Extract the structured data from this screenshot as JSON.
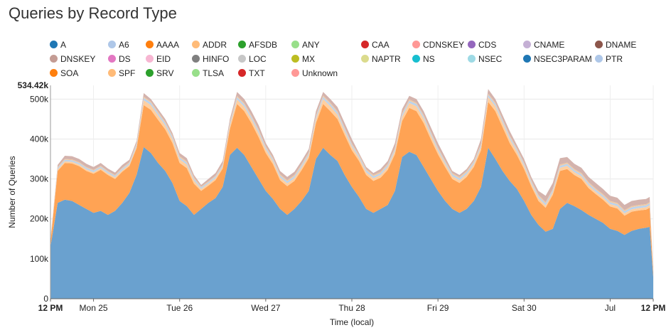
{
  "chart_data": {
    "type": "area",
    "stacked": true,
    "title": "Queries by Record Type",
    "xlabel": "Time (local)",
    "ylabel": "Number of Queries",
    "ylim": [
      0,
      534420
    ],
    "y_max_label": "534.42k",
    "y_ticks": [
      {
        "value": 0,
        "label": "0"
      },
      {
        "value": 100000,
        "label": "100k"
      },
      {
        "value": 200000,
        "label": "200k"
      },
      {
        "value": 300000,
        "label": "300k"
      },
      {
        "value": 400000,
        "label": "400k"
      },
      {
        "value": 500000,
        "label": "500k"
      }
    ],
    "x_ticks": [
      {
        "hour": 0,
        "label": "12 PM",
        "bold": true
      },
      {
        "hour": 12,
        "label": "Mon 25",
        "bold": false
      },
      {
        "hour": 36,
        "label": "Tue 26",
        "bold": false
      },
      {
        "hour": 60,
        "label": "Wed 27",
        "bold": false
      },
      {
        "hour": 84,
        "label": "Thu 28",
        "bold": false
      },
      {
        "hour": 108,
        "label": "Fri 29",
        "bold": false
      },
      {
        "hour": 132,
        "label": "Sat 30",
        "bold": false
      },
      {
        "hour": 156,
        "label": "Jul",
        "bold": false
      },
      {
        "hour": 168,
        "label": "12 PM",
        "bold": true
      }
    ],
    "grid": true,
    "legend_position": "top",
    "legend": [
      {
        "name": "A",
        "color": "#1f77b4"
      },
      {
        "name": "A6",
        "color": "#aec7e8"
      },
      {
        "name": "AAAA",
        "color": "#ff7f0e"
      },
      {
        "name": "ADDR",
        "color": "#ffbb78"
      },
      {
        "name": "AFSDB",
        "color": "#2ca02c"
      },
      {
        "name": "ANY",
        "color": "#98df8a"
      },
      {
        "name": "CAA",
        "color": "#d62728"
      },
      {
        "name": "CDNSKEY",
        "color": "#ff9896"
      },
      {
        "name": "CDS",
        "color": "#9467bd"
      },
      {
        "name": "CNAME",
        "color": "#c5b0d5"
      },
      {
        "name": "DNAME",
        "color": "#8c564b"
      },
      {
        "name": "DNSKEY",
        "color": "#c49c94"
      },
      {
        "name": "DS",
        "color": "#e377c2"
      },
      {
        "name": "EID",
        "color": "#f7b6d2"
      },
      {
        "name": "HINFO",
        "color": "#7f7f7f"
      },
      {
        "name": "LOC",
        "color": "#c7c7c7"
      },
      {
        "name": "MX",
        "color": "#bcbd22"
      },
      {
        "name": "NAPTR",
        "color": "#dbdb8d"
      },
      {
        "name": "NS",
        "color": "#17becf"
      },
      {
        "name": "NSEC",
        "color": "#9edae5"
      },
      {
        "name": "NSEC3PARAM",
        "color": "#1f77b4"
      },
      {
        "name": "PTR",
        "color": "#aec7e8"
      },
      {
        "name": "SOA",
        "color": "#ff7f0e"
      },
      {
        "name": "SPF",
        "color": "#ffbb78"
      },
      {
        "name": "SRV",
        "color": "#2ca02c"
      },
      {
        "name": "TLSA",
        "color": "#98df8a"
      },
      {
        "name": "TXT",
        "color": "#d62728"
      },
      {
        "name": "Unknown",
        "color": "#ff9896"
      }
    ],
    "series_draw": [
      {
        "name": "A",
        "color": "#6aa1cf"
      },
      {
        "name": "AAAA",
        "color": "#ffa354"
      },
      {
        "name": "ADDR",
        "color": "#ffcfa0"
      },
      {
        "name": "PTR",
        "color": "#bcd3ec"
      },
      {
        "name": "SOA",
        "color": "#f1c9a0"
      },
      {
        "name": "DNSKEY",
        "color": "#d4b3ad"
      }
    ],
    "x_hours": [
      0,
      2,
      4,
      6,
      8,
      10,
      12,
      14,
      16,
      18,
      20,
      22,
      24,
      26,
      28,
      30,
      32,
      34,
      36,
      38,
      40,
      42,
      44,
      46,
      48,
      50,
      52,
      54,
      56,
      58,
      60,
      62,
      64,
      66,
      68,
      70,
      72,
      74,
      76,
      78,
      80,
      82,
      84,
      86,
      88,
      90,
      92,
      94,
      96,
      98,
      100,
      102,
      104,
      106,
      108,
      110,
      112,
      114,
      116,
      118,
      120,
      122,
      124,
      126,
      128,
      130,
      132,
      134,
      136,
      138,
      140,
      142,
      144,
      146,
      148,
      150,
      152,
      154,
      156,
      158,
      160,
      162,
      164,
      166,
      167,
      168
    ],
    "totals": [
      150000,
      335000,
      358000,
      357000,
      350000,
      338000,
      330000,
      340000,
      326000,
      316000,
      335000,
      348000,
      395000,
      515000,
      500000,
      475000,
      450000,
      415000,
      365000,
      352000,
      310000,
      285000,
      300000,
      315000,
      345000,
      450000,
      518000,
      500000,
      470000,
      435000,
      390000,
      360000,
      320000,
      305000,
      318000,
      345000,
      375000,
      470000,
      518000,
      500000,
      480000,
      440000,
      400000,
      365000,
      330000,
      315000,
      325000,
      345000,
      390000,
      475000,
      508000,
      500000,
      470000,
      430000,
      390000,
      355000,
      320000,
      310000,
      325000,
      350000,
      400000,
      525000,
      500000,
      460000,
      420000,
      385000,
      350000,
      305000,
      270000,
      258000,
      290000,
      352000,
      355000,
      338000,
      328000,
      305000,
      290000,
      275000,
      258000,
      253000,
      235000,
      245000,
      248000,
      250000,
      255000,
      70000
    ],
    "values_A": [
      130000,
      240000,
      248000,
      245000,
      235000,
      225000,
      215000,
      220000,
      210000,
      220000,
      240000,
      265000,
      310000,
      380000,
      365000,
      340000,
      320000,
      290000,
      245000,
      232000,
      210000,
      225000,
      240000,
      252000,
      280000,
      360000,
      378000,
      360000,
      330000,
      300000,
      270000,
      250000,
      225000,
      210000,
      225000,
      245000,
      270000,
      350000,
      378000,
      360000,
      345000,
      310000,
      280000,
      255000,
      225000,
      215000,
      225000,
      235000,
      270000,
      355000,
      368000,
      360000,
      330000,
      300000,
      270000,
      245000,
      225000,
      215000,
      225000,
      245000,
      280000,
      378000,
      350000,
      320000,
      295000,
      275000,
      245000,
      210000,
      185000,
      168000,
      175000,
      225000,
      240000,
      232000,
      222000,
      210000,
      200000,
      190000,
      175000,
      170000,
      160000,
      170000,
      175000,
      178000,
      180000,
      55000
    ],
    "values_AAAA": [
      12000,
      80000,
      92000,
      94000,
      97000,
      95000,
      98000,
      103000,
      100000,
      80000,
      78000,
      67000,
      67000,
      105000,
      108000,
      108000,
      104000,
      100000,
      95000,
      95000,
      78000,
      45000,
      43000,
      45000,
      46000,
      65000,
      110000,
      110000,
      110000,
      105000,
      95000,
      87000,
      72000,
      72000,
      70000,
      77000,
      82000,
      90000,
      110000,
      110000,
      105000,
      100000,
      92000,
      90000,
      85000,
      80000,
      78000,
      88000,
      92000,
      90000,
      110000,
      110000,
      110000,
      100000,
      92000,
      85000,
      75000,
      75000,
      80000,
      85000,
      92000,
      115000,
      120000,
      110000,
      95000,
      85000,
      80000,
      72000,
      60000,
      60000,
      85000,
      95000,
      85000,
      78000,
      78000,
      67000,
      62000,
      58000,
      56000,
      56000,
      48000,
      48000,
      46000,
      45000,
      48000,
      10000
    ],
    "values_ADDR": [
      3000,
      4000,
      4000,
      4000,
      4000,
      4000,
      4000,
      4000,
      4000,
      4000,
      4000,
      4000,
      5000,
      12000,
      12000,
      11000,
      10000,
      10000,
      9000,
      9000,
      8000,
      5000,
      5000,
      5000,
      5000,
      9000,
      11000,
      11000,
      10000,
      10000,
      9000,
      8000,
      7000,
      7000,
      7000,
      7000,
      7000,
      10000,
      12000,
      12000,
      11000,
      10000,
      9000,
      8000,
      7000,
      7000,
      7000,
      7000,
      8000,
      11000,
      12000,
      12000,
      11000,
      10000,
      9000,
      8000,
      7000,
      7000,
      7000,
      7000,
      8000,
      12000,
      12000,
      11000,
      10000,
      9000,
      8000,
      7000,
      7000,
      6000,
      7000,
      8000,
      8000,
      7000,
      7000,
      7000,
      6000,
      6000,
      6000,
      6000,
      6000,
      6000,
      6000,
      6000,
      6000,
      2000
    ],
    "values_PTR": [
      2000,
      4000,
      4000,
      4000,
      4000,
      4000,
      4000,
      4000,
      4000,
      4000,
      4000,
      4000,
      5000,
      6000,
      6000,
      6000,
      6000,
      6000,
      5000,
      5000,
      5000,
      4000,
      4000,
      4000,
      4000,
      5000,
      6000,
      6000,
      6000,
      6000,
      5000,
      5000,
      5000,
      5000,
      5000,
      5000,
      5000,
      6000,
      6000,
      6000,
      6000,
      6000,
      5000,
      5000,
      5000,
      5000,
      5000,
      5000,
      5000,
      6000,
      6000,
      6000,
      6000,
      6000,
      5000,
      5000,
      5000,
      5000,
      5000,
      5000,
      5000,
      6000,
      6000,
      6000,
      6000,
      5000,
      5000,
      5000,
      5000,
      5000,
      5000,
      5000,
      5000,
      5000,
      5000,
      5000,
      5000,
      5000,
      5000,
      5000,
      5000,
      5000,
      5000,
      5000,
      5000,
      1000
    ],
    "values_SOA": [
      1000,
      2000,
      2000,
      2000,
      2000,
      2000,
      2000,
      2000,
      2000,
      2000,
      2000,
      2000,
      2000,
      3000,
      3000,
      3000,
      3000,
      3000,
      3000,
      3000,
      3000,
      2000,
      2000,
      2000,
      2000,
      3000,
      3000,
      3000,
      3000,
      3000,
      3000,
      3000,
      3000,
      3000,
      3000,
      3000,
      3000,
      3000,
      3000,
      3000,
      3000,
      3000,
      3000,
      3000,
      3000,
      3000,
      3000,
      3000,
      3000,
      3000,
      3000,
      3000,
      3000,
      3000,
      3000,
      3000,
      3000,
      3000,
      3000,
      3000,
      3000,
      3000,
      3000,
      3000,
      3000,
      3000,
      3000,
      3000,
      3000,
      3000,
      3000,
      3000,
      3000,
      3000,
      3000,
      3000,
      3000,
      3000,
      3000,
      3000,
      3000,
      3000,
      3000,
      3000,
      3000,
      1000
    ]
  }
}
